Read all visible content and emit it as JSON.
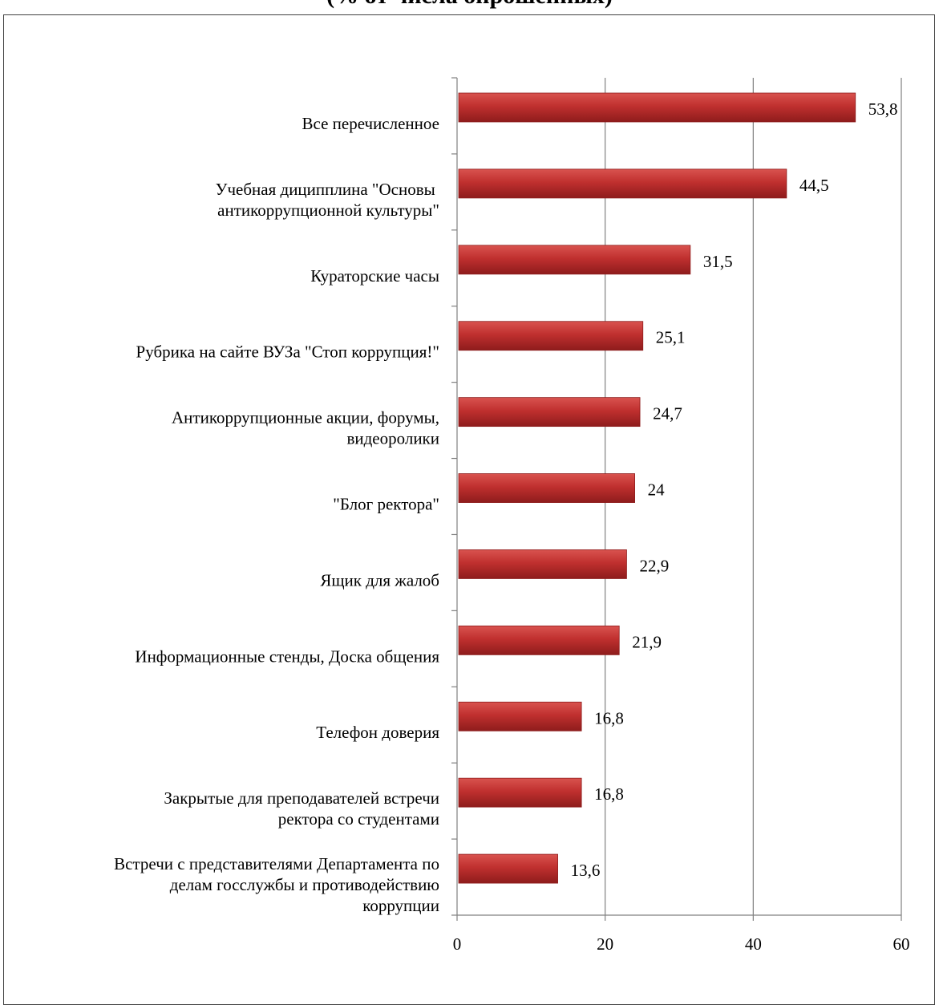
{
  "chart_data": {
    "type": "bar",
    "orientation": "horizontal",
    "title": "(% от числа опрошенных)",
    "categories": [
      "Все перечисленное",
      "Учебная диципплина \"Основы антикоррупционной культуры\"",
      "Кураторские часы",
      "Рубрика на сайте ВУЗа \"Стоп коррупция!\"",
      "Антикоррупционные акции, форумы, видеоролики",
      "\"Блог ректора\"",
      "Ящик для жалоб",
      "Информационные стенды, Доска общения",
      "Телефон доверия",
      "Закрытые для  преподавателей встречи ректора со студентами",
      "Встречи с представителями Департамента по делам госслужбы и противодействию коррупции"
    ],
    "category_lines": [
      [
        "Все перечисленное"
      ],
      [
        "Учебная диципплина \"Основы ",
        "антикоррупционной культуры\""
      ],
      [
        "Кураторские часы"
      ],
      [
        "Рубрика на сайте ВУЗа \"Стоп коррупция!\""
      ],
      [
        "Антикоррупционные акции, форумы,",
        "видеоролики"
      ],
      [
        "\"Блог ректора\""
      ],
      [
        "Ящик для жалоб"
      ],
      [
        "Информационные стенды, Доска общения"
      ],
      [
        "Телефон доверия"
      ],
      [
        "Закрытые для  преподавателей встречи",
        "ректора со студентами"
      ],
      [
        "Встречи с представителями Департамента по",
        "делам госслужбы и противодействию",
        "коррупции"
      ]
    ],
    "values": [
      53.8,
      44.5,
      31.5,
      25.1,
      24.7,
      24,
      22.9,
      21.9,
      16.8,
      16.8,
      13.6
    ],
    "value_labels": [
      "53,8",
      "44,5",
      "31,5",
      "25,1",
      "24,7",
      "24",
      "22,9",
      "21,9",
      "16,8",
      "16,8",
      "13,6"
    ],
    "xlim": [
      0,
      60
    ],
    "x_ticks": [
      0,
      20,
      40,
      60
    ],
    "x_tick_labels": [
      "0",
      "20",
      "40",
      "60"
    ],
    "grid": "vertical",
    "legend": "none",
    "bar_color": "#c0302f"
  }
}
